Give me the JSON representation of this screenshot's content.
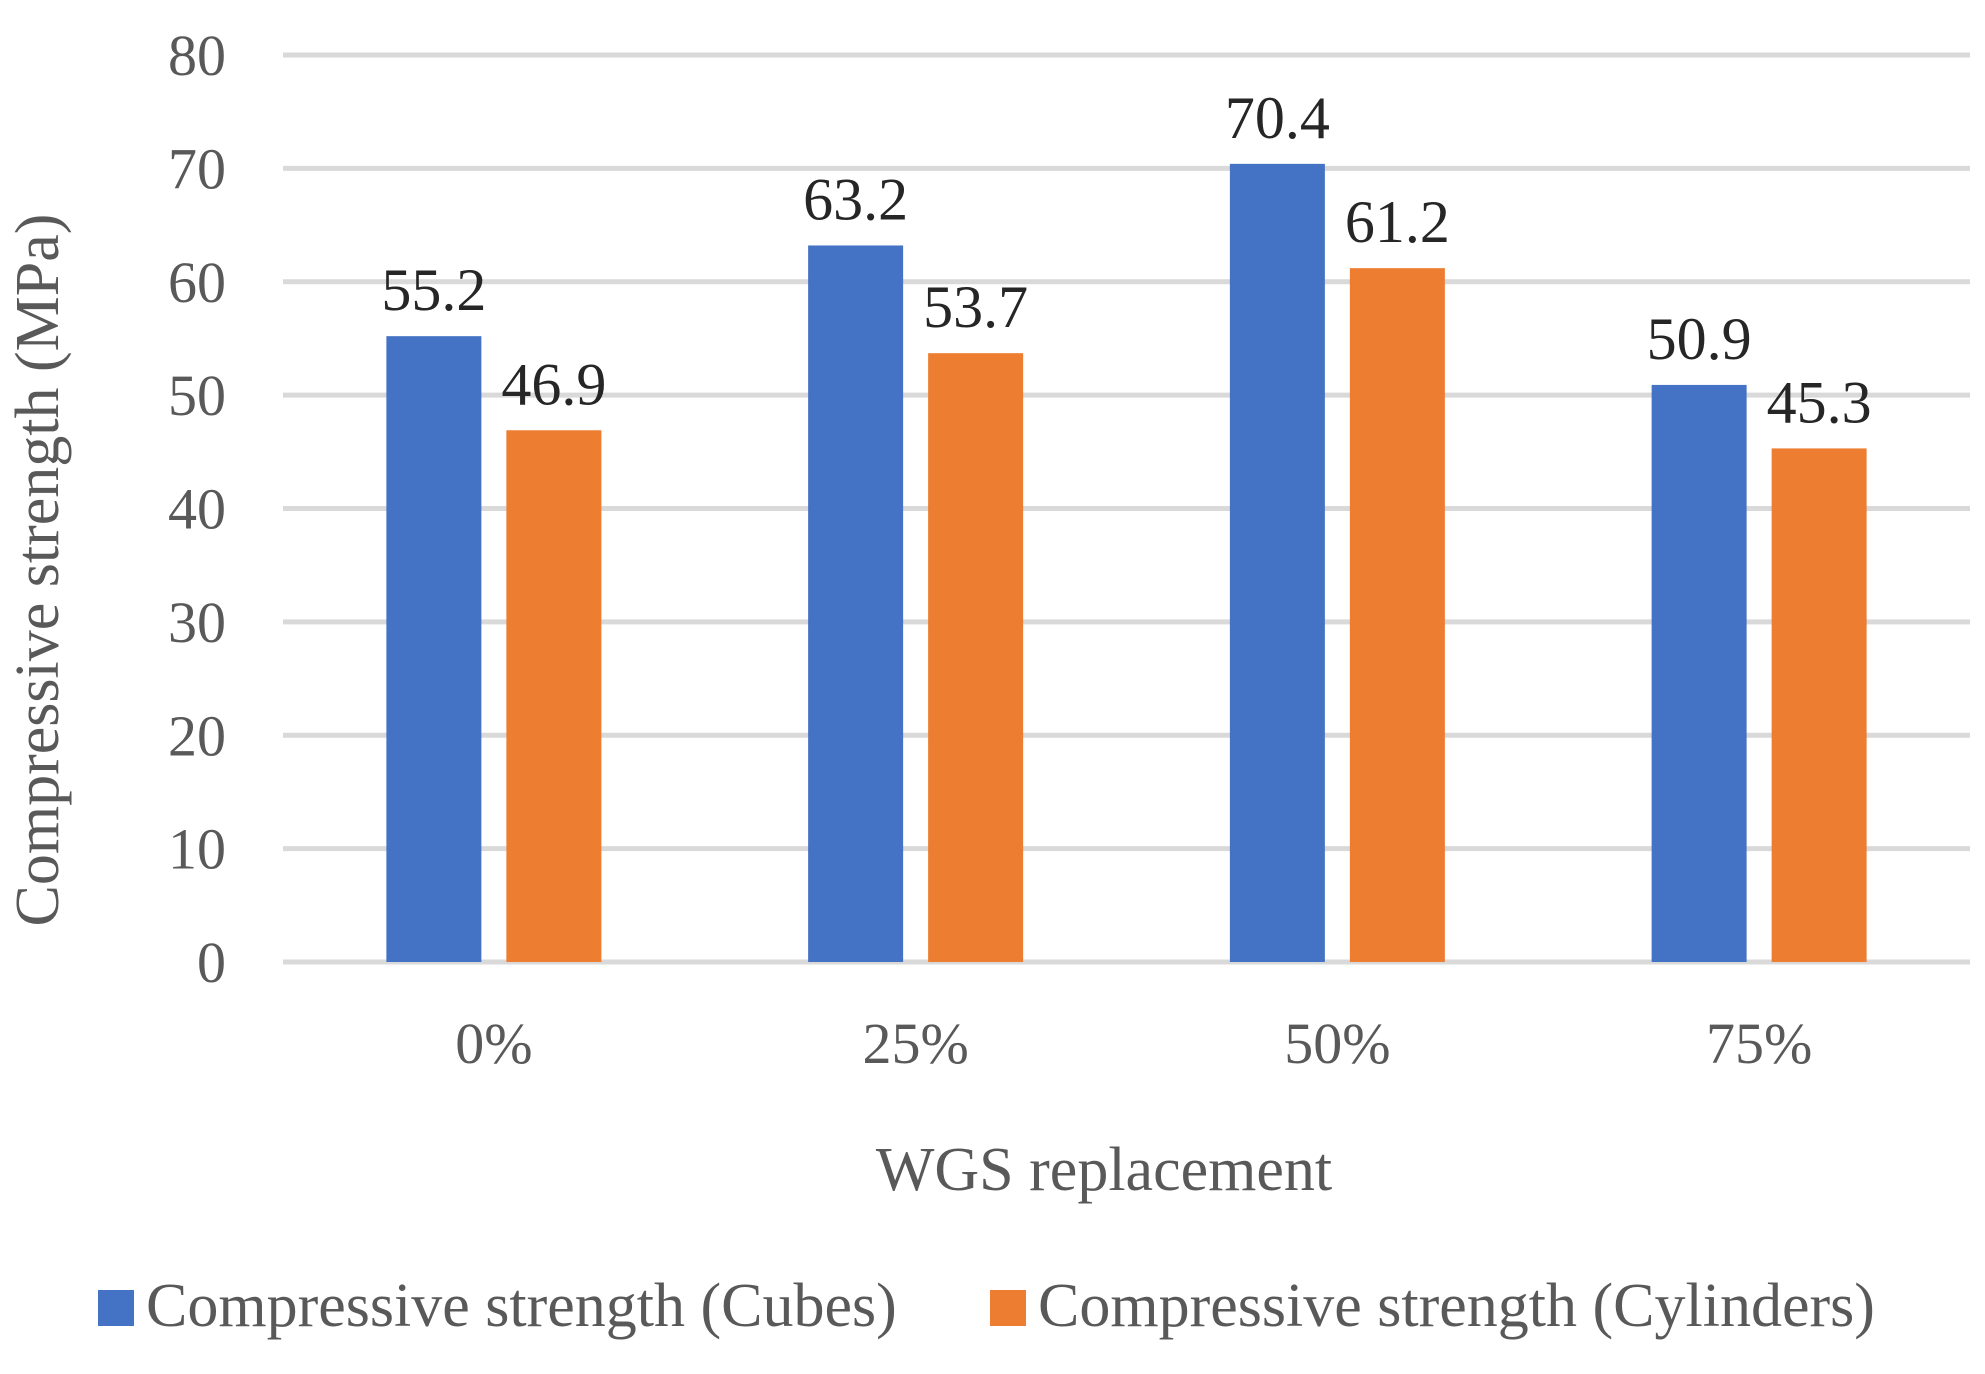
{
  "chart_data": {
    "type": "bar",
    "title": "",
    "xlabel": "WGS replacement",
    "ylabel": "Compressive strength (MPa)",
    "categories": [
      "0%",
      "25%",
      "50%",
      "75%"
    ],
    "series": [
      {
        "name": "Compressive strength (Cubes)",
        "color": "#4472c4",
        "values": [
          55.2,
          63.2,
          70.4,
          50.9
        ],
        "labels": [
          "55.2",
          "63.2",
          "70.4",
          "50.9"
        ]
      },
      {
        "name": "Compressive strength (Cylinders)",
        "color": "#ed7d31",
        "values": [
          46.9,
          53.7,
          61.2,
          45.3
        ],
        "labels": [
          "46.9",
          "53.7",
          "61.2",
          "45.3"
        ]
      }
    ],
    "ylim": [
      0,
      80
    ],
    "yticks": [
      0,
      10,
      20,
      30,
      40,
      50,
      60,
      70,
      80
    ],
    "ytick_labels": [
      "0",
      "10",
      "20",
      "30",
      "40",
      "50",
      "60",
      "70",
      "80"
    ],
    "grid": true,
    "legend": "bottom"
  }
}
